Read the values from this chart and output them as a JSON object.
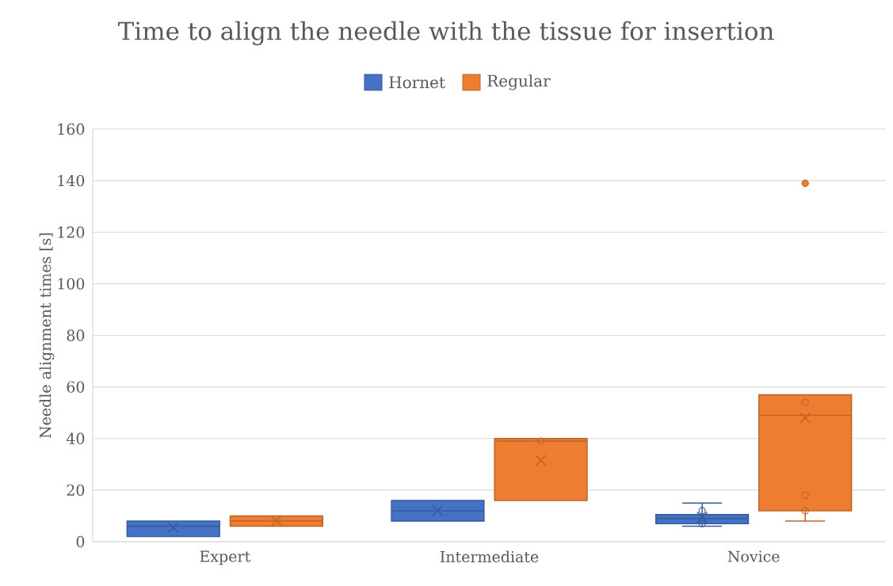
{
  "chart_data": {
    "type": "box",
    "title": "Time to align the needle with the tissue for insertion",
    "ylabel": "Needle alignment times [s]",
    "categories": [
      "Expert",
      "Intermediate",
      "Novice"
    ],
    "ylim": [
      0,
      160
    ],
    "yticks": [
      0,
      20,
      40,
      60,
      80,
      100,
      120,
      140,
      160
    ],
    "grid": "y",
    "legend": "top",
    "series": [
      {
        "name": "Hornet",
        "color": "#4472c4",
        "boxes": [
          {
            "low": 2,
            "q1": 2,
            "median": 6,
            "q3": 8,
            "high": 8,
            "mean": 5.5
          },
          {
            "low": 8,
            "q1": 8,
            "median": 12,
            "q3": 16,
            "high": 16,
            "mean": 12
          },
          {
            "low": 6,
            "q1": 7,
            "median": 9,
            "q3": 10.5,
            "high": 15,
            "mean": 9.5,
            "outliers": [
              12,
              7
            ]
          }
        ]
      },
      {
        "name": "Regular",
        "color": "#ed7d31",
        "boxes": [
          {
            "low": 6,
            "q1": 6,
            "median": 8,
            "q3": 10,
            "high": 10,
            "mean": 8
          },
          {
            "low": 16,
            "q1": 16,
            "median": 39,
            "q3": 40,
            "high": 40,
            "mean": 31.5,
            "outliers": [
              39
            ]
          },
          {
            "low": 8,
            "q1": 12,
            "median": 49,
            "q3": 57,
            "high": 57,
            "mean": 48,
            "outliers": [
              139,
              54,
              18,
              12
            ]
          }
        ]
      }
    ]
  }
}
